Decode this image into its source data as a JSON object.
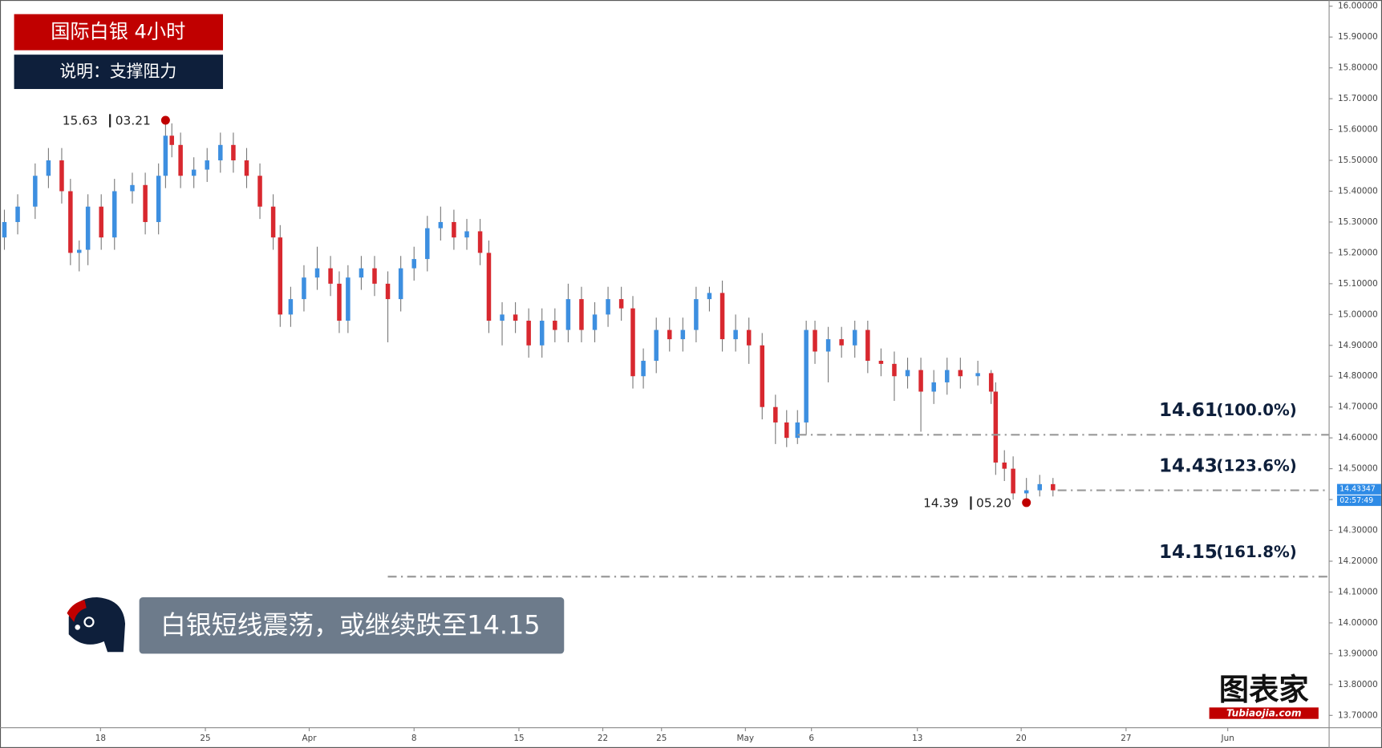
{
  "header": {
    "title": "国际白银 4小时",
    "subtitle": "说明：支撑阻力"
  },
  "caption": "白银短线震荡，或继续跌至14.15",
  "logo": {
    "name": "图表家",
    "site": "Tubiaojia.com"
  },
  "chart_data": {
    "type": "candlestick",
    "colors": {
      "up": "#3d8fe0",
      "down": "#d8282f"
    },
    "xlim": [
      0,
      379
    ],
    "ylim": [
      13.66,
      16.02
    ],
    "xticks": [
      {
        "value": 27.5,
        "label": "18"
      },
      {
        "value": 57.5,
        "label": "25"
      },
      {
        "value": 87.2,
        "label": "Apr"
      },
      {
        "value": 117.2,
        "label": "8"
      },
      {
        "value": 147.2,
        "label": "15"
      },
      {
        "value": 171.2,
        "label": "22"
      },
      {
        "value": 188,
        "label": "25"
      },
      {
        "value": 212,
        "label": "May"
      },
      {
        "value": 230.9,
        "label": "6"
      },
      {
        "value": 261.2,
        "label": "13"
      },
      {
        "value": 290.9,
        "label": "20"
      },
      {
        "value": 320.9,
        "label": "27"
      },
      {
        "value": 350,
        "label": "Jun"
      }
    ],
    "yticks": [
      {
        "value": 13.7,
        "label": "13.70000"
      },
      {
        "value": 13.8,
        "label": "13.80000"
      },
      {
        "value": 13.9,
        "label": "13.90000"
      },
      {
        "value": 14.0,
        "label": "14.00000"
      },
      {
        "value": 14.1,
        "label": "14.10000"
      },
      {
        "value": 14.2,
        "label": "14.20000"
      },
      {
        "value": 14.3,
        "label": "14.30000"
      },
      {
        "value": 14.4,
        "label": "14.40000"
      },
      {
        "value": 14.5,
        "label": "14.50000"
      },
      {
        "value": 14.6,
        "label": "14.60000"
      },
      {
        "value": 14.7,
        "label": "14.70000"
      },
      {
        "value": 14.8,
        "label": "14.80000"
      },
      {
        "value": 14.9,
        "label": "14.90000"
      },
      {
        "value": 15.0,
        "label": "15.00000"
      },
      {
        "value": 15.1,
        "label": "15.10000"
      },
      {
        "value": 15.2,
        "label": "15.20000"
      },
      {
        "value": 15.3,
        "label": "15.30000"
      },
      {
        "value": 15.4,
        "label": "15.40000"
      },
      {
        "value": 15.5,
        "label": "15.50000"
      },
      {
        "value": 15.6,
        "label": "15.60000"
      },
      {
        "value": 15.7,
        "label": "15.70000"
      },
      {
        "value": 15.8,
        "label": "15.80000"
      },
      {
        "value": 15.9,
        "label": "15.90000"
      },
      {
        "value": 16.0,
        "label": "16.00000"
      }
    ],
    "candles": [
      {
        "x": 0,
        "o": 15.25,
        "h": 15.34,
        "l": 15.21,
        "c": 15.3
      },
      {
        "x": 3.8,
        "o": 15.3,
        "h": 15.39,
        "l": 15.26,
        "c": 15.35
      },
      {
        "x": 8.8,
        "o": 15.35,
        "h": 15.49,
        "l": 15.31,
        "c": 15.45
      },
      {
        "x": 12.6,
        "o": 15.45,
        "h": 15.54,
        "l": 15.41,
        "c": 15.5
      },
      {
        "x": 16.4,
        "o": 15.5,
        "h": 15.54,
        "l": 15.36,
        "c": 15.4
      },
      {
        "x": 18.9,
        "o": 15.4,
        "h": 15.44,
        "l": 15.16,
        "c": 15.2
      },
      {
        "x": 21.4,
        "o": 15.2,
        "h": 15.24,
        "l": 15.14,
        "c": 15.21
      },
      {
        "x": 23.9,
        "o": 15.21,
        "h": 15.39,
        "l": 15.16,
        "c": 15.35
      },
      {
        "x": 27.7,
        "o": 15.35,
        "h": 15.39,
        "l": 15.21,
        "c": 15.25
      },
      {
        "x": 31.5,
        "o": 15.25,
        "h": 15.44,
        "l": 15.21,
        "c": 15.4
      },
      {
        "x": 36.6,
        "o": 15.4,
        "h": 15.46,
        "l": 15.36,
        "c": 15.42
      },
      {
        "x": 40.3,
        "o": 15.42,
        "h": 15.46,
        "l": 15.26,
        "c": 15.3
      },
      {
        "x": 44.1,
        "o": 15.3,
        "h": 15.49,
        "l": 15.26,
        "c": 15.45
      },
      {
        "x": 46.1,
        "o": 15.45,
        "h": 15.63,
        "l": 15.41,
        "c": 15.58
      },
      {
        "x": 47.9,
        "o": 15.58,
        "h": 15.62,
        "l": 15.51,
        "c": 15.55
      },
      {
        "x": 50.4,
        "o": 15.55,
        "h": 15.59,
        "l": 15.41,
        "c": 15.45
      },
      {
        "x": 54.2,
        "o": 15.45,
        "h": 15.51,
        "l": 15.41,
        "c": 15.47
      },
      {
        "x": 58.0,
        "o": 15.47,
        "h": 15.54,
        "l": 15.43,
        "c": 15.5
      },
      {
        "x": 61.8,
        "o": 15.5,
        "h": 15.59,
        "l": 15.46,
        "c": 15.55
      },
      {
        "x": 65.5,
        "o": 15.55,
        "h": 15.59,
        "l": 15.46,
        "c": 15.5
      },
      {
        "x": 69.3,
        "o": 15.5,
        "h": 15.54,
        "l": 15.41,
        "c": 15.45
      },
      {
        "x": 73.1,
        "o": 15.45,
        "h": 15.49,
        "l": 15.31,
        "c": 15.35
      },
      {
        "x": 76.9,
        "o": 15.35,
        "h": 15.39,
        "l": 15.21,
        "c": 15.25
      },
      {
        "x": 78.9,
        "o": 15.25,
        "h": 15.29,
        "l": 14.96,
        "c": 15.0
      },
      {
        "x": 81.9,
        "o": 15.0,
        "h": 15.09,
        "l": 14.96,
        "c": 15.05
      },
      {
        "x": 85.7,
        "o": 15.05,
        "h": 15.16,
        "l": 15.01,
        "c": 15.12
      },
      {
        "x": 89.5,
        "o": 15.12,
        "h": 15.22,
        "l": 15.08,
        "c": 15.15
      },
      {
        "x": 93.3,
        "o": 15.15,
        "h": 15.19,
        "l": 15.06,
        "c": 15.1
      },
      {
        "x": 95.8,
        "o": 15.1,
        "h": 15.14,
        "l": 14.94,
        "c": 14.98
      },
      {
        "x": 98.3,
        "o": 14.98,
        "h": 15.16,
        "l": 14.94,
        "c": 15.12
      },
      {
        "x": 102.1,
        "o": 15.12,
        "h": 15.19,
        "l": 15.08,
        "c": 15.15
      },
      {
        "x": 105.9,
        "o": 15.15,
        "h": 15.19,
        "l": 15.06,
        "c": 15.1
      },
      {
        "x": 109.7,
        "o": 15.1,
        "h": 15.14,
        "l": 14.91,
        "c": 15.05
      },
      {
        "x": 113.4,
        "o": 15.05,
        "h": 15.19,
        "l": 15.01,
        "c": 15.15
      },
      {
        "x": 117.2,
        "o": 15.15,
        "h": 15.22,
        "l": 15.11,
        "c": 15.18
      },
      {
        "x": 121.0,
        "o": 15.18,
        "h": 15.32,
        "l": 15.14,
        "c": 15.28
      },
      {
        "x": 124.8,
        "o": 15.28,
        "h": 15.35,
        "l": 15.24,
        "c": 15.3
      },
      {
        "x": 128.6,
        "o": 15.3,
        "h": 15.34,
        "l": 15.21,
        "c": 15.25
      },
      {
        "x": 132.3,
        "o": 15.25,
        "h": 15.31,
        "l": 15.21,
        "c": 15.27
      },
      {
        "x": 136.1,
        "o": 15.27,
        "h": 15.31,
        "l": 15.16,
        "c": 15.2
      },
      {
        "x": 138.6,
        "o": 15.2,
        "h": 15.24,
        "l": 14.94,
        "c": 14.98
      },
      {
        "x": 142.4,
        "o": 14.98,
        "h": 15.04,
        "l": 14.9,
        "c": 15.0
      },
      {
        "x": 146.2,
        "o": 15.0,
        "h": 15.04,
        "l": 14.94,
        "c": 14.98
      },
      {
        "x": 150.0,
        "o": 14.98,
        "h": 15.02,
        "l": 14.86,
        "c": 14.9
      },
      {
        "x": 153.8,
        "o": 14.9,
        "h": 15.02,
        "l": 14.86,
        "c": 14.98
      },
      {
        "x": 157.5,
        "o": 14.98,
        "h": 15.02,
        "l": 14.91,
        "c": 14.95
      },
      {
        "x": 161.3,
        "o": 14.95,
        "h": 15.1,
        "l": 14.91,
        "c": 15.05
      },
      {
        "x": 165.1,
        "o": 15.05,
        "h": 15.09,
        "l": 14.91,
        "c": 14.95
      },
      {
        "x": 168.9,
        "o": 14.95,
        "h": 15.04,
        "l": 14.91,
        "c": 15.0
      },
      {
        "x": 172.7,
        "o": 15.0,
        "h": 15.09,
        "l": 14.96,
        "c": 15.05
      },
      {
        "x": 176.5,
        "o": 15.05,
        "h": 15.09,
        "l": 14.98,
        "c": 15.02
      },
      {
        "x": 179.8,
        "o": 15.02,
        "h": 15.06,
        "l": 14.76,
        "c": 14.8
      },
      {
        "x": 182.8,
        "o": 14.8,
        "h": 14.89,
        "l": 14.76,
        "c": 14.85
      },
      {
        "x": 186.5,
        "o": 14.85,
        "h": 14.99,
        "l": 14.81,
        "c": 14.95
      },
      {
        "x": 190.3,
        "o": 14.95,
        "h": 14.99,
        "l": 14.88,
        "c": 14.92
      },
      {
        "x": 194.1,
        "o": 14.92,
        "h": 14.99,
        "l": 14.88,
        "c": 14.95
      },
      {
        "x": 197.9,
        "o": 14.95,
        "h": 15.09,
        "l": 14.91,
        "c": 15.05
      },
      {
        "x": 201.7,
        "o": 15.05,
        "h": 15.09,
        "l": 15.01,
        "c": 15.07
      },
      {
        "x": 205.4,
        "o": 15.07,
        "h": 15.11,
        "l": 14.88,
        "c": 14.92
      },
      {
        "x": 209.2,
        "o": 14.92,
        "h": 15.0,
        "l": 14.88,
        "c": 14.95
      },
      {
        "x": 213.0,
        "o": 14.95,
        "h": 14.99,
        "l": 14.84,
        "c": 14.9
      },
      {
        "x": 216.8,
        "o": 14.9,
        "h": 14.94,
        "l": 14.66,
        "c": 14.7
      },
      {
        "x": 220.6,
        "o": 14.7,
        "h": 14.74,
        "l": 14.58,
        "c": 14.65
      },
      {
        "x": 223.8,
        "o": 14.65,
        "h": 14.69,
        "l": 14.57,
        "c": 14.6
      },
      {
        "x": 226.9,
        "o": 14.6,
        "h": 14.69,
        "l": 14.58,
        "c": 14.65
      },
      {
        "x": 229.4,
        "o": 14.65,
        "h": 14.98,
        "l": 14.61,
        "c": 14.95
      },
      {
        "x": 231.9,
        "o": 14.95,
        "h": 14.98,
        "l": 14.84,
        "c": 14.88
      },
      {
        "x": 235.7,
        "o": 14.88,
        "h": 14.96,
        "l": 14.78,
        "c": 14.92
      },
      {
        "x": 239.5,
        "o": 14.92,
        "h": 14.96,
        "l": 14.86,
        "c": 14.9
      },
      {
        "x": 243.3,
        "o": 14.9,
        "h": 14.98,
        "l": 14.86,
        "c": 14.95
      },
      {
        "x": 247.0,
        "o": 14.95,
        "h": 14.98,
        "l": 14.81,
        "c": 14.85
      },
      {
        "x": 250.8,
        "o": 14.85,
        "h": 14.89,
        "l": 14.8,
        "c": 14.84
      },
      {
        "x": 254.6,
        "o": 14.84,
        "h": 14.88,
        "l": 14.72,
        "c": 14.8
      },
      {
        "x": 258.4,
        "o": 14.8,
        "h": 14.86,
        "l": 14.76,
        "c": 14.82
      },
      {
        "x": 262.2,
        "o": 14.82,
        "h": 14.86,
        "l": 14.62,
        "c": 14.75
      },
      {
        "x": 265.9,
        "o": 14.75,
        "h": 14.82,
        "l": 14.71,
        "c": 14.78
      },
      {
        "x": 269.7,
        "o": 14.78,
        "h": 14.86,
        "l": 14.74,
        "c": 14.82
      },
      {
        "x": 273.5,
        "o": 14.82,
        "h": 14.86,
        "l": 14.76,
        "c": 14.8
      },
      {
        "x": 278.5,
        "o": 14.8,
        "h": 14.85,
        "l": 14.77,
        "c": 14.81
      },
      {
        "x": 282.3,
        "o": 14.81,
        "h": 14.82,
        "l": 14.71,
        "c": 14.75
      },
      {
        "x": 283.6,
        "o": 14.75,
        "h": 14.78,
        "l": 14.48,
        "c": 14.52
      },
      {
        "x": 286.1,
        "o": 14.52,
        "h": 14.56,
        "l": 14.46,
        "c": 14.5
      },
      {
        "x": 288.6,
        "o": 14.5,
        "h": 14.54,
        "l": 14.4,
        "c": 14.42
      },
      {
        "x": 292.4,
        "o": 14.42,
        "h": 14.47,
        "l": 14.39,
        "c": 14.43
      },
      {
        "x": 296.2,
        "o": 14.43,
        "h": 14.48,
        "l": 14.41,
        "c": 14.45
      },
      {
        "x": 300.0,
        "o": 14.45,
        "h": 14.47,
        "l": 14.41,
        "c": 14.43
      }
    ],
    "extremes": [
      {
        "x": 46.1,
        "value": 15.63,
        "date": "03.21"
      },
      {
        "x": 292.4,
        "value": 14.39,
        "date": "05.20"
      }
    ],
    "levels": [
      {
        "value": 14.61,
        "label": "(100.0%)"
      },
      {
        "value": 14.43,
        "label": "(123.6%)"
      },
      {
        "value": 14.15,
        "label": "(161.8%)"
      }
    ],
    "last_price": {
      "value": 14.43347,
      "countdown": "02:57:49"
    }
  }
}
